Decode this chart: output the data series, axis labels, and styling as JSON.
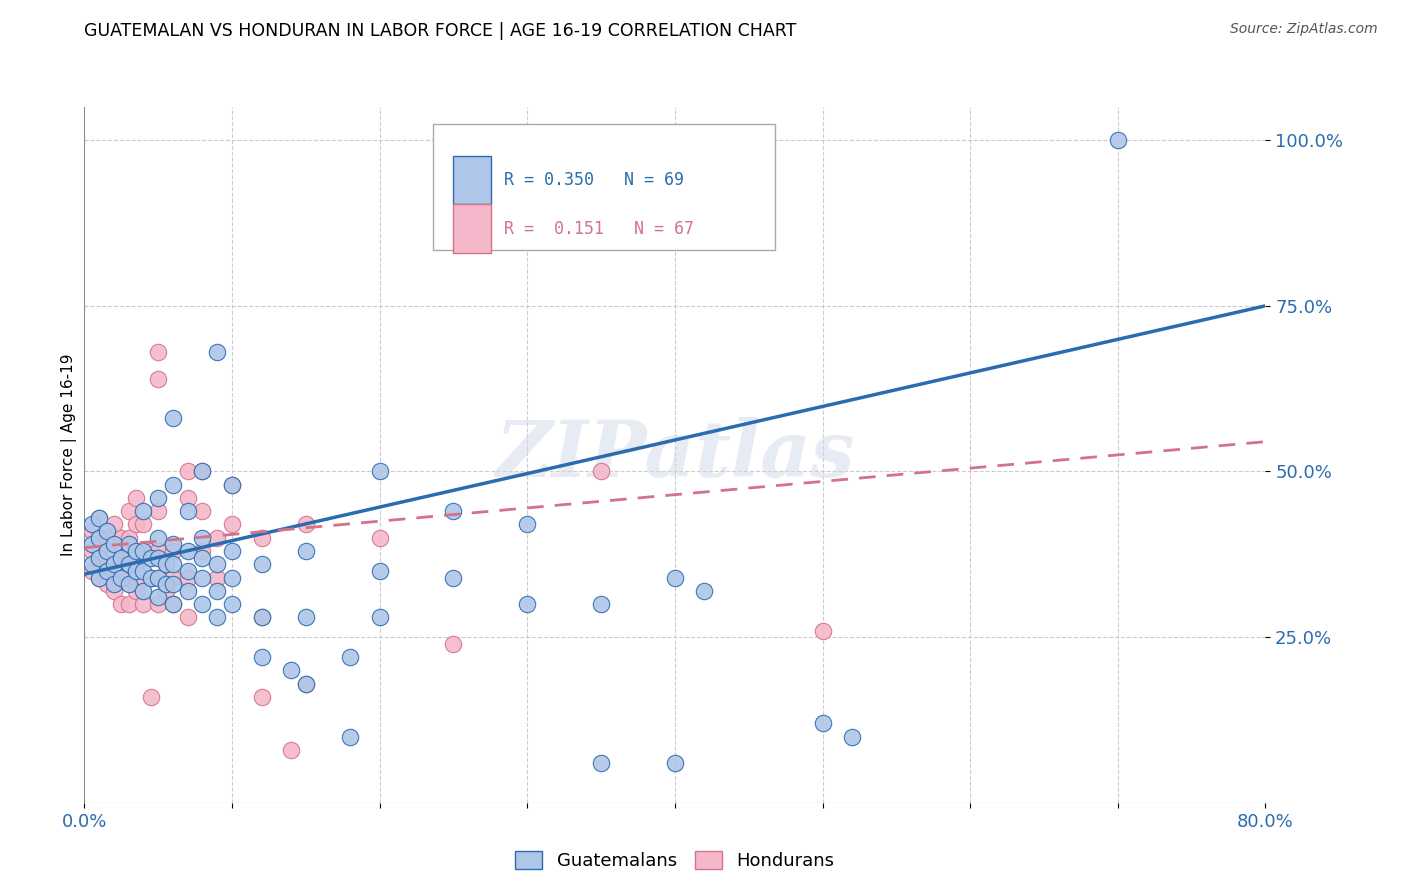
{
  "title": "GUATEMALAN VS HONDURAN IN LABOR FORCE | AGE 16-19 CORRELATION CHART",
  "source": "Source: ZipAtlas.com",
  "ylabel": "In Labor Force | Age 16-19",
  "xlim": [
    0.0,
    0.8
  ],
  "ylim": [
    0.0,
    1.05
  ],
  "ytick_labels": [
    "25.0%",
    "50.0%",
    "75.0%",
    "100.0%"
  ],
  "ytick_positions": [
    0.25,
    0.5,
    0.75,
    1.0
  ],
  "guatemalan_color": "#aec6e8",
  "honduran_color": "#f5b8cb",
  "trendline_guatemalan_color": "#2b6cb0",
  "trendline_honduran_color": "#d4728a",
  "background_color": "#ffffff",
  "watermark": "ZIPatlas",
  "guatemalan_scatter": [
    [
      0.005,
      0.36
    ],
    [
      0.005,
      0.39
    ],
    [
      0.005,
      0.42
    ],
    [
      0.01,
      0.34
    ],
    [
      0.01,
      0.37
    ],
    [
      0.01,
      0.4
    ],
    [
      0.01,
      0.43
    ],
    [
      0.015,
      0.35
    ],
    [
      0.015,
      0.38
    ],
    [
      0.015,
      0.41
    ],
    [
      0.02,
      0.33
    ],
    [
      0.02,
      0.36
    ],
    [
      0.02,
      0.39
    ],
    [
      0.025,
      0.34
    ],
    [
      0.025,
      0.37
    ],
    [
      0.03,
      0.33
    ],
    [
      0.03,
      0.36
    ],
    [
      0.03,
      0.39
    ],
    [
      0.035,
      0.35
    ],
    [
      0.035,
      0.38
    ],
    [
      0.04,
      0.32
    ],
    [
      0.04,
      0.35
    ],
    [
      0.04,
      0.38
    ],
    [
      0.04,
      0.44
    ],
    [
      0.045,
      0.34
    ],
    [
      0.045,
      0.37
    ],
    [
      0.05,
      0.31
    ],
    [
      0.05,
      0.34
    ],
    [
      0.05,
      0.37
    ],
    [
      0.05,
      0.4
    ],
    [
      0.05,
      0.46
    ],
    [
      0.055,
      0.33
    ],
    [
      0.055,
      0.36
    ],
    [
      0.06,
      0.3
    ],
    [
      0.06,
      0.33
    ],
    [
      0.06,
      0.36
    ],
    [
      0.06,
      0.39
    ],
    [
      0.06,
      0.48
    ],
    [
      0.06,
      0.58
    ],
    [
      0.07,
      0.32
    ],
    [
      0.07,
      0.35
    ],
    [
      0.07,
      0.38
    ],
    [
      0.07,
      0.44
    ],
    [
      0.08,
      0.3
    ],
    [
      0.08,
      0.34
    ],
    [
      0.08,
      0.37
    ],
    [
      0.08,
      0.4
    ],
    [
      0.08,
      0.5
    ],
    [
      0.09,
      0.28
    ],
    [
      0.09,
      0.32
    ],
    [
      0.09,
      0.36
    ],
    [
      0.09,
      0.68
    ],
    [
      0.1,
      0.3
    ],
    [
      0.1,
      0.34
    ],
    [
      0.1,
      0.38
    ],
    [
      0.1,
      0.48
    ],
    [
      0.12,
      0.22
    ],
    [
      0.12,
      0.28
    ],
    [
      0.12,
      0.36
    ],
    [
      0.14,
      0.2
    ],
    [
      0.15,
      0.18
    ],
    [
      0.15,
      0.28
    ],
    [
      0.15,
      0.38
    ],
    [
      0.18,
      0.1
    ],
    [
      0.18,
      0.22
    ],
    [
      0.2,
      0.28
    ],
    [
      0.2,
      0.35
    ],
    [
      0.2,
      0.5
    ],
    [
      0.25,
      0.34
    ],
    [
      0.25,
      0.44
    ],
    [
      0.3,
      0.3
    ],
    [
      0.3,
      0.42
    ],
    [
      0.35,
      0.06
    ],
    [
      0.35,
      0.3
    ],
    [
      0.4,
      0.06
    ],
    [
      0.4,
      0.34
    ],
    [
      0.42,
      0.32
    ],
    [
      0.5,
      0.12
    ],
    [
      0.52,
      0.1
    ],
    [
      0.7,
      1.0
    ]
  ],
  "honduran_scatter": [
    [
      0.005,
      0.35
    ],
    [
      0.005,
      0.38
    ],
    [
      0.005,
      0.41
    ],
    [
      0.01,
      0.34
    ],
    [
      0.01,
      0.36
    ],
    [
      0.01,
      0.38
    ],
    [
      0.01,
      0.4
    ],
    [
      0.01,
      0.43
    ],
    [
      0.015,
      0.33
    ],
    [
      0.015,
      0.36
    ],
    [
      0.015,
      0.4
    ],
    [
      0.02,
      0.32
    ],
    [
      0.02,
      0.35
    ],
    [
      0.02,
      0.38
    ],
    [
      0.02,
      0.42
    ],
    [
      0.025,
      0.3
    ],
    [
      0.025,
      0.34
    ],
    [
      0.025,
      0.37
    ],
    [
      0.025,
      0.4
    ],
    [
      0.03,
      0.3
    ],
    [
      0.03,
      0.34
    ],
    [
      0.03,
      0.37
    ],
    [
      0.03,
      0.4
    ],
    [
      0.03,
      0.44
    ],
    [
      0.035,
      0.32
    ],
    [
      0.035,
      0.36
    ],
    [
      0.035,
      0.42
    ],
    [
      0.035,
      0.46
    ],
    [
      0.04,
      0.3
    ],
    [
      0.04,
      0.34
    ],
    [
      0.04,
      0.38
    ],
    [
      0.04,
      0.42
    ],
    [
      0.045,
      0.16
    ],
    [
      0.045,
      0.34
    ],
    [
      0.045,
      0.38
    ],
    [
      0.05,
      0.3
    ],
    [
      0.05,
      0.34
    ],
    [
      0.05,
      0.38
    ],
    [
      0.05,
      0.44
    ],
    [
      0.05,
      0.64
    ],
    [
      0.05,
      0.68
    ],
    [
      0.055,
      0.32
    ],
    [
      0.055,
      0.36
    ],
    [
      0.06,
      0.3
    ],
    [
      0.06,
      0.34
    ],
    [
      0.06,
      0.38
    ],
    [
      0.07,
      0.28
    ],
    [
      0.07,
      0.34
    ],
    [
      0.07,
      0.46
    ],
    [
      0.07,
      0.5
    ],
    [
      0.08,
      0.38
    ],
    [
      0.08,
      0.44
    ],
    [
      0.08,
      0.5
    ],
    [
      0.09,
      0.34
    ],
    [
      0.09,
      0.4
    ],
    [
      0.1,
      0.42
    ],
    [
      0.1,
      0.48
    ],
    [
      0.12,
      0.16
    ],
    [
      0.12,
      0.28
    ],
    [
      0.12,
      0.4
    ],
    [
      0.14,
      0.08
    ],
    [
      0.15,
      0.18
    ],
    [
      0.15,
      0.42
    ],
    [
      0.2,
      0.4
    ],
    [
      0.25,
      0.24
    ],
    [
      0.35,
      0.5
    ],
    [
      0.5,
      0.26
    ]
  ],
  "guatemalan_trend_x": [
    0.0,
    0.8
  ],
  "guatemalan_trend_y": [
    0.345,
    0.75
  ],
  "honduran_trend_x": [
    0.0,
    0.8
  ],
  "honduran_trend_y": [
    0.385,
    0.545
  ]
}
